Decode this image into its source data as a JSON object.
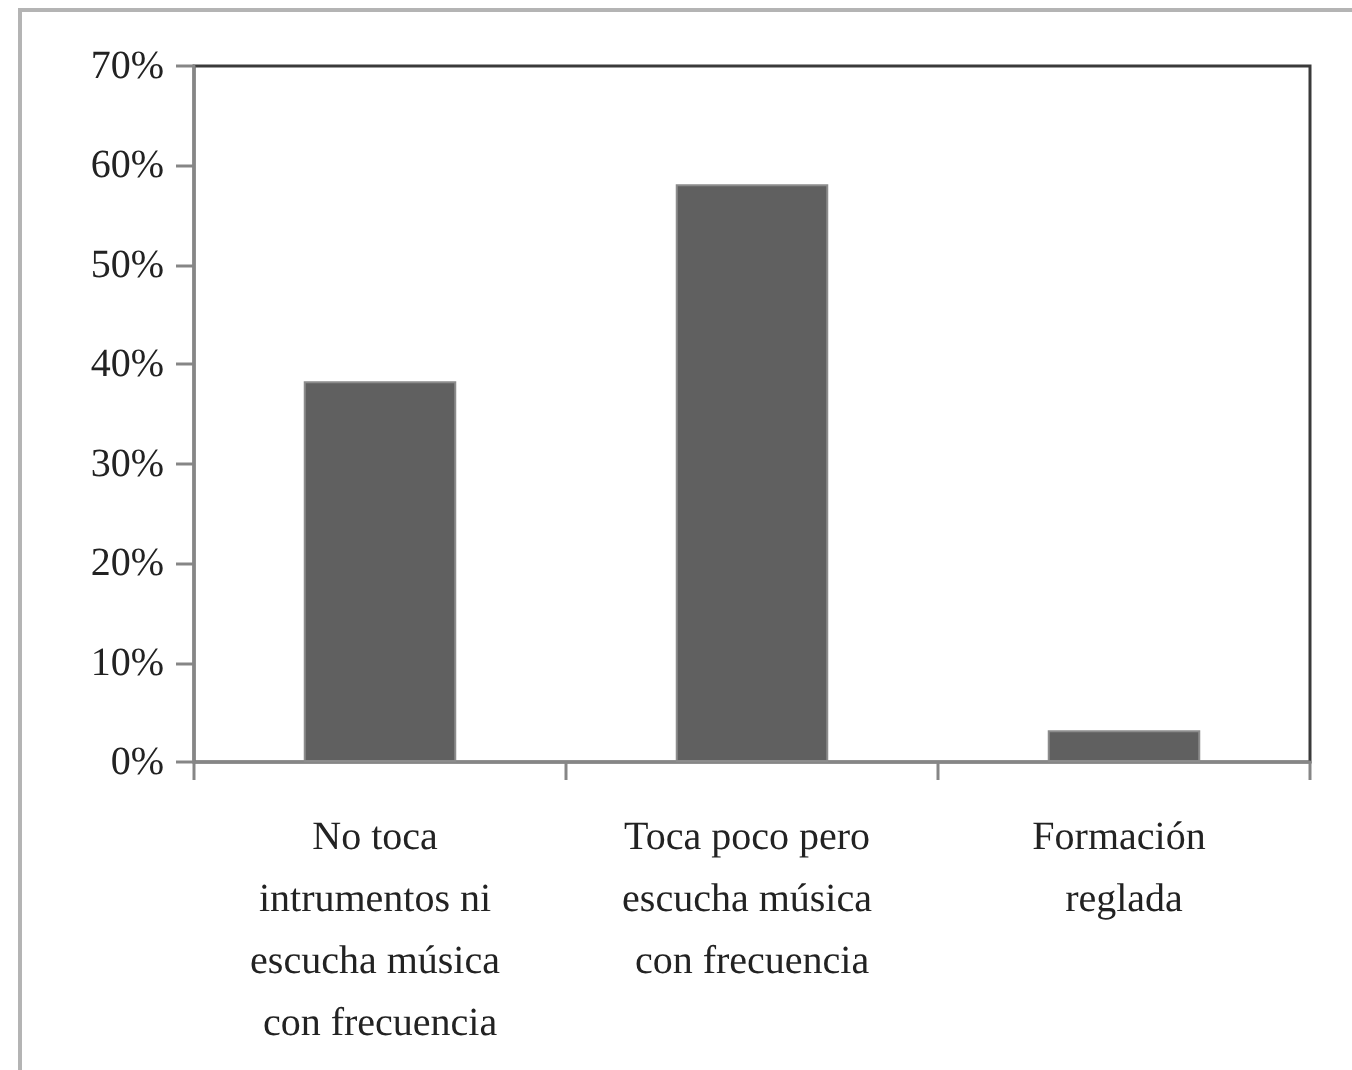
{
  "chart_data": {
    "type": "bar",
    "categories": [
      "No toca intrumentos ni escucha música con frecuencia",
      "Toca poco pero escucha música con frecuencia",
      "Formación reglada"
    ],
    "values": [
      38.3,
      58.1,
      3.2
    ],
    "color": "#606060",
    "ylim": [
      0,
      70
    ],
    "yticks": [
      {
        "value": 0,
        "label": "0%"
      },
      {
        "value": 10,
        "label": "10%"
      },
      {
        "value": 20,
        "label": "20%"
      },
      {
        "value": 30,
        "label": "30%"
      },
      {
        "value": 40,
        "label": "40%"
      },
      {
        "value": 50,
        "label": "50%"
      },
      {
        "value": 60,
        "label": "60%"
      },
      {
        "value": 70,
        "label": "70%"
      }
    ]
  }
}
